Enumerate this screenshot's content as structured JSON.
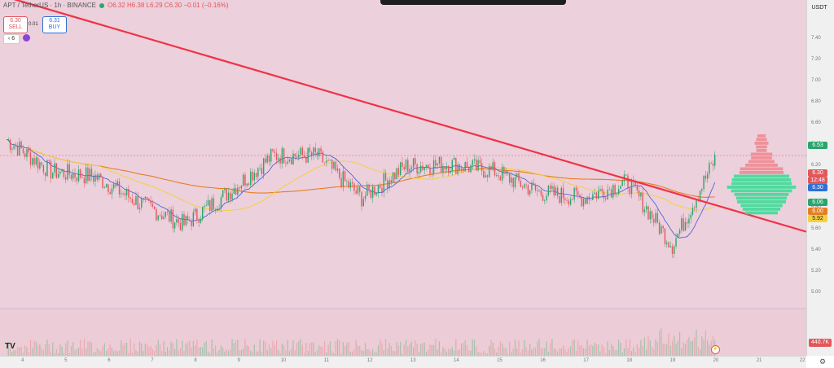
{
  "legend": {
    "symbol": "APT / TetherUS · 1h · BINANCE",
    "ohlc": "O6.32 H6.38 L6.29 C6.30 −0.01 (−0.16%)"
  },
  "trade": {
    "sell_price": "6.30",
    "sell_label": "SELL",
    "buy_price": "6.31",
    "buy_label": "BUY",
    "spread": "0.01"
  },
  "indicators_count": "6",
  "currency": "USDT",
  "price_ticks": [
    "7.40",
    "7.20",
    "7.00",
    "6.80",
    "6.60",
    "6.40",
    "6.20",
    "6.00",
    "5.80",
    "5.60",
    "5.40",
    "5.20",
    "5.00"
  ],
  "price_tags": [
    {
      "text": "6.53",
      "color": "#2aa56b"
    },
    {
      "text": "6.30",
      "color": "#e3565a"
    },
    {
      "text": "12:48",
      "color": "#e3565a"
    },
    {
      "text": "6.30",
      "color": "#2f6fd6"
    },
    {
      "text": "6.06",
      "color": "#2aa56b"
    },
    {
      "text": "6.00",
      "color": "#e67e22"
    },
    {
      "text": "5.92",
      "color": "#f4d03f"
    }
  ],
  "volume_label": "440.7K",
  "time_ticks": [
    "4",
    "5",
    "6",
    "7",
    "8",
    "9",
    "10",
    "11",
    "12",
    "13",
    "14",
    "15",
    "16",
    "17",
    "18",
    "19",
    "20",
    "21",
    "22"
  ],
  "chart_data": {
    "type": "candlestick",
    "title": "APT / TetherUS · 1h · BINANCE",
    "ylim": [
      5.0,
      7.5
    ],
    "x": [
      "4",
      "5",
      "6",
      "7",
      "8",
      "9",
      "10",
      "11",
      "12",
      "13",
      "14",
      "15",
      "16",
      "17",
      "18",
      "19",
      "20"
    ],
    "close": [
      6.45,
      6.15,
      6.1,
      5.85,
      5.65,
      5.95,
      6.3,
      6.3,
      5.9,
      6.2,
      6.22,
      6.15,
      5.95,
      5.9,
      6.05,
      5.45,
      6.3
    ],
    "trendline": [
      {
        "x": "4",
        "y": 7.72
      },
      {
        "x": "22",
        "y": 5.58
      }
    ],
    "colors": {
      "up": "#2aa56b",
      "down": "#e3565a",
      "trend": "#f03246",
      "ma_slow": "#e67e22",
      "ma_mid": "#f4d03f"
    }
  }
}
